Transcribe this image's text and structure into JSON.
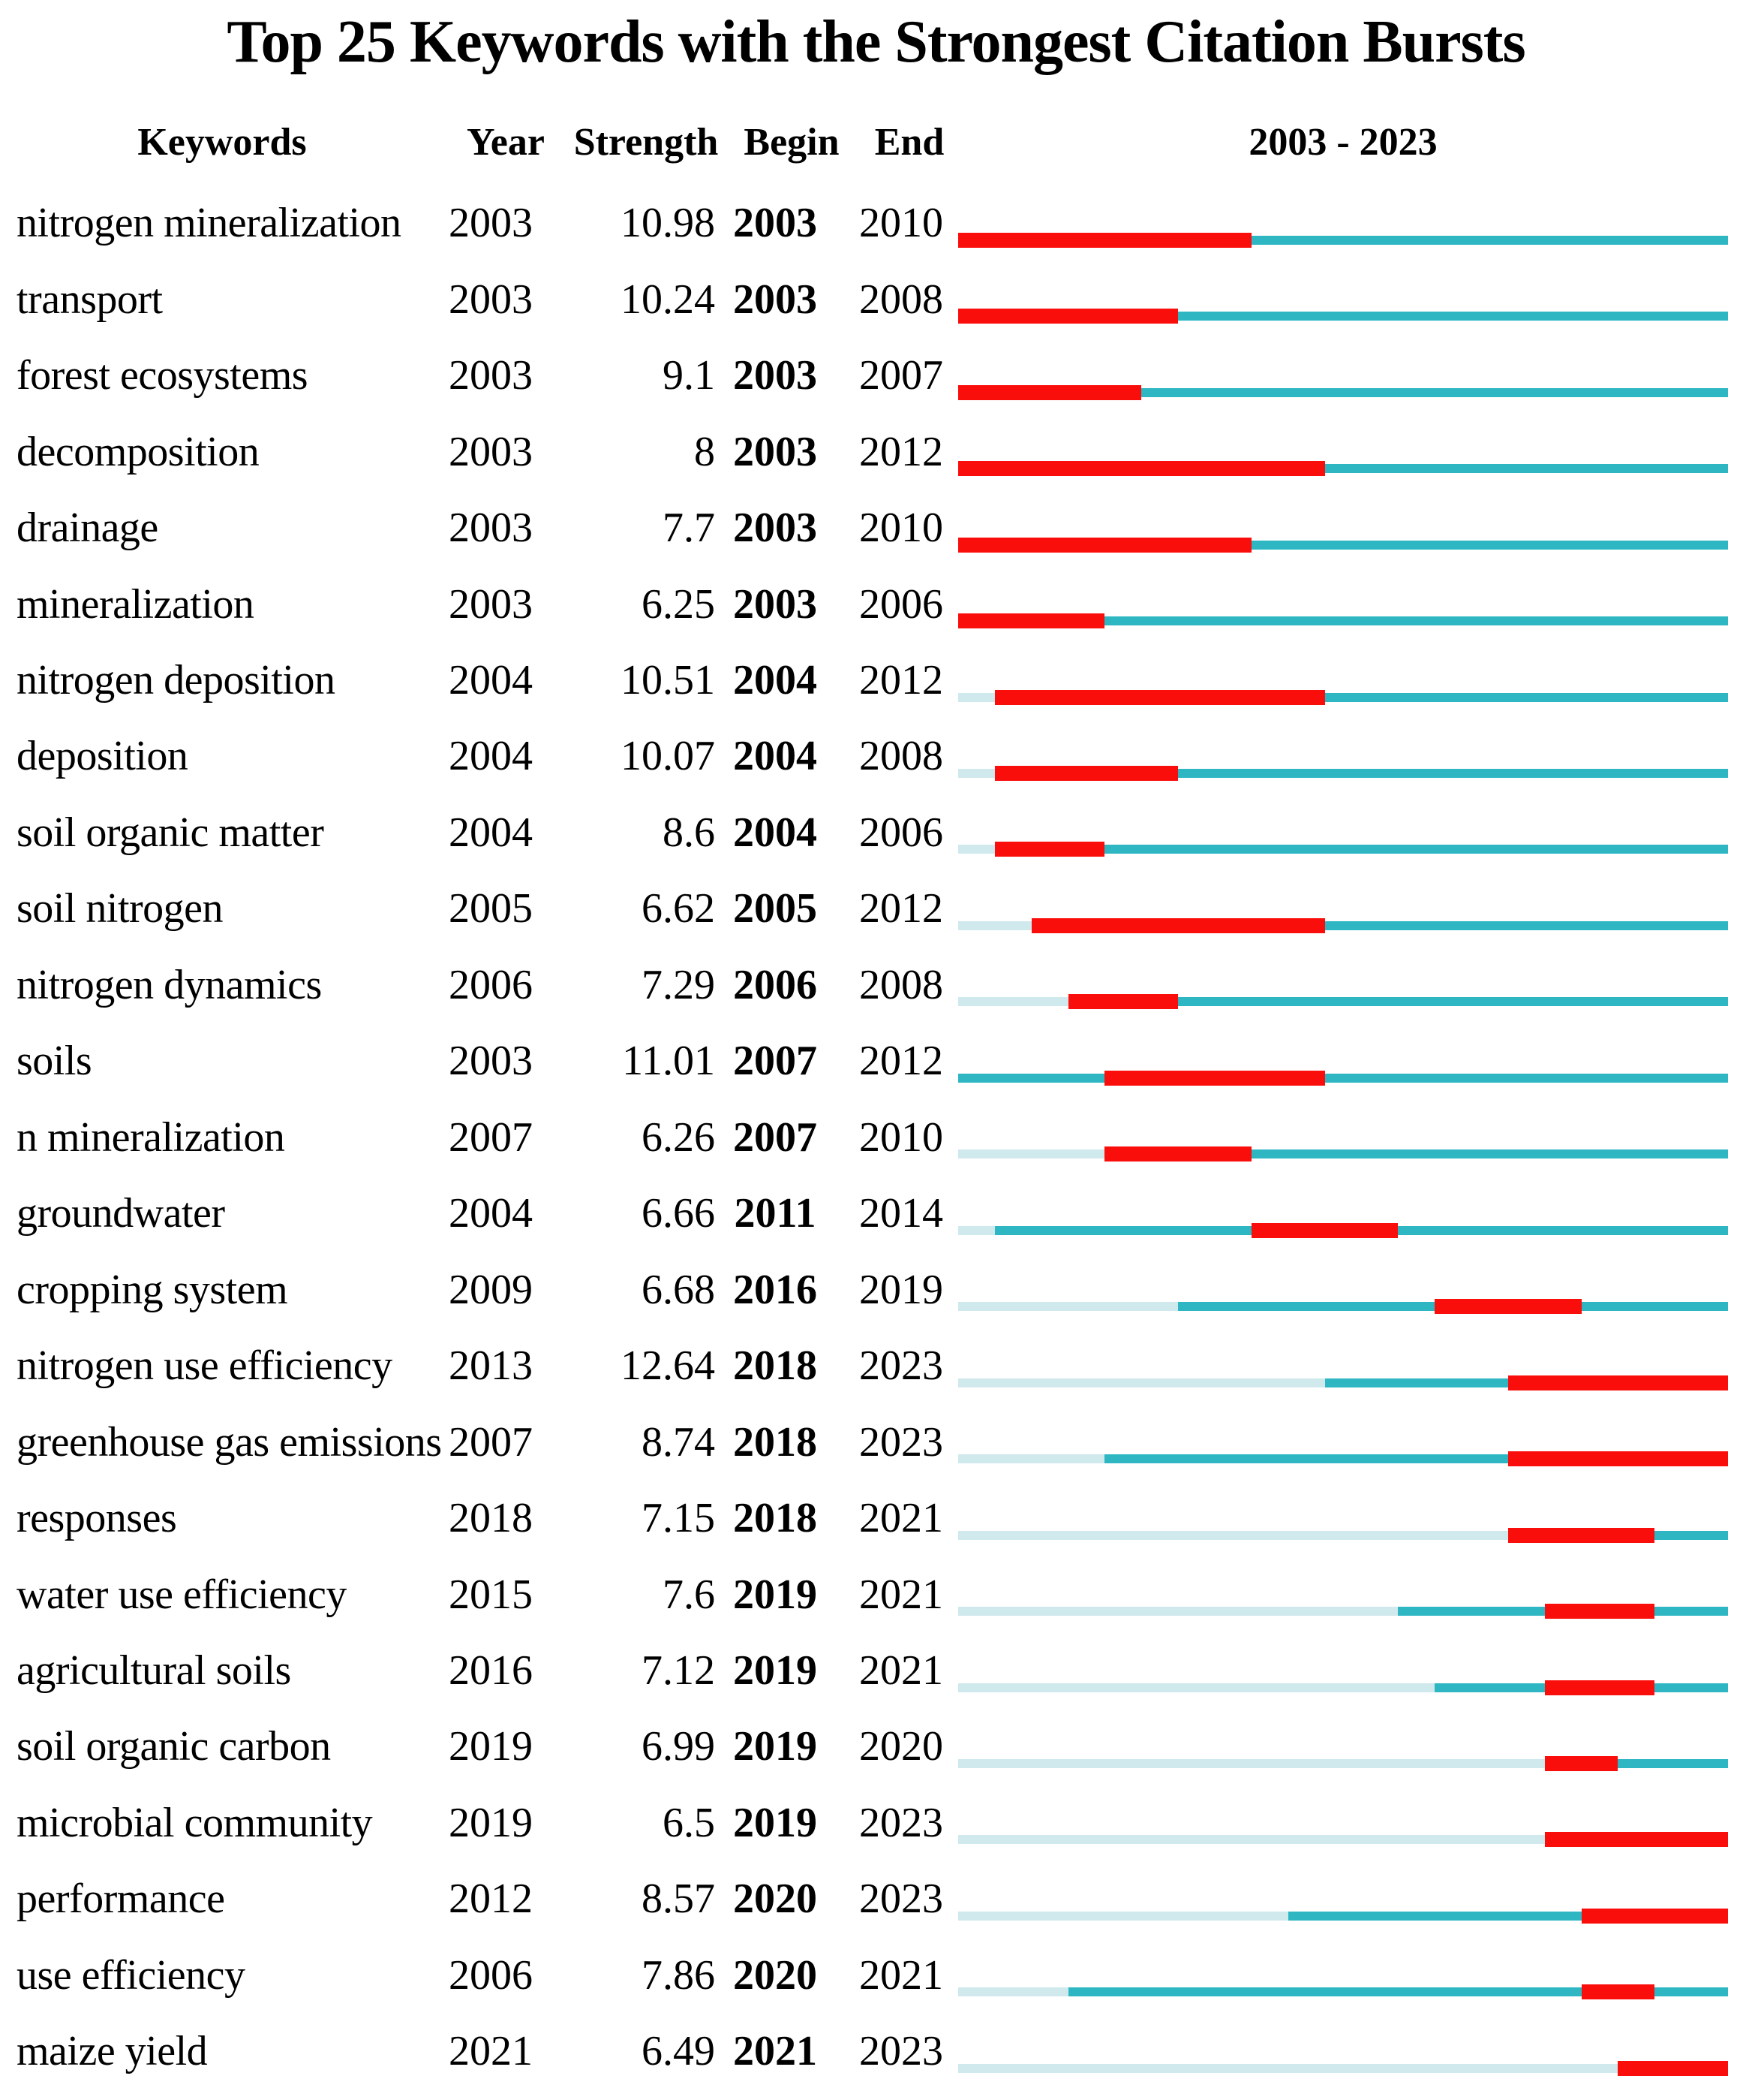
{
  "title": "Top 25 Keywords with the Strongest Citation Bursts",
  "header": {
    "keywords": "Keywords",
    "year": "Year",
    "strength": "Strength",
    "begin": "Begin",
    "end": "End",
    "period": "2003 - 2023"
  },
  "colors": {
    "burst": "#fa0e0c",
    "active": "#2eb7c3",
    "pre_appearance": "#cfe9ed",
    "text": "#000000",
    "background": "#ffffff"
  },
  "chart_data": {
    "type": "table",
    "title": "Top 25 Keywords with the Strongest Citation Bursts",
    "columns": [
      "Keywords",
      "Year",
      "Strength",
      "Begin",
      "End",
      "2003 - 2023"
    ],
    "timeline_range": [
      2003,
      2023
    ],
    "legend_note": "red segment = burst period (Begin-End), teal = keyword active, pale = before first appearance",
    "rows": [
      {
        "keyword": "nitrogen mineralization",
        "year": 2003,
        "strength": "10.98",
        "begin": 2003,
        "end": 2010
      },
      {
        "keyword": "transport",
        "year": 2003,
        "strength": "10.24",
        "begin": 2003,
        "end": 2008
      },
      {
        "keyword": "forest ecosystems",
        "year": 2003,
        "strength": "9.1",
        "begin": 2003,
        "end": 2007
      },
      {
        "keyword": "decomposition",
        "year": 2003,
        "strength": "8",
        "begin": 2003,
        "end": 2012
      },
      {
        "keyword": "drainage",
        "year": 2003,
        "strength": "7.7",
        "begin": 2003,
        "end": 2010
      },
      {
        "keyword": "mineralization",
        "year": 2003,
        "strength": "6.25",
        "begin": 2003,
        "end": 2006
      },
      {
        "keyword": "nitrogen deposition",
        "year": 2004,
        "strength": "10.51",
        "begin": 2004,
        "end": 2012
      },
      {
        "keyword": "deposition",
        "year": 2004,
        "strength": "10.07",
        "begin": 2004,
        "end": 2008
      },
      {
        "keyword": "soil organic matter",
        "year": 2004,
        "strength": "8.6",
        "begin": 2004,
        "end": 2006
      },
      {
        "keyword": "soil nitrogen",
        "year": 2005,
        "strength": "6.62",
        "begin": 2005,
        "end": 2012
      },
      {
        "keyword": "nitrogen dynamics",
        "year": 2006,
        "strength": "7.29",
        "begin": 2006,
        "end": 2008
      },
      {
        "keyword": "soils",
        "year": 2003,
        "strength": "11.01",
        "begin": 2007,
        "end": 2012
      },
      {
        "keyword": "n mineralization",
        "year": 2007,
        "strength": "6.26",
        "begin": 2007,
        "end": 2010
      },
      {
        "keyword": "groundwater",
        "year": 2004,
        "strength": "6.66",
        "begin": 2011,
        "end": 2014
      },
      {
        "keyword": "cropping system",
        "year": 2009,
        "strength": "6.68",
        "begin": 2016,
        "end": 2019
      },
      {
        "keyword": "nitrogen use efficiency",
        "year": 2013,
        "strength": "12.64",
        "begin": 2018,
        "end": 2023
      },
      {
        "keyword": "greenhouse gas emissions",
        "year": 2007,
        "strength": "8.74",
        "begin": 2018,
        "end": 2023
      },
      {
        "keyword": "responses",
        "year": 2018,
        "strength": "7.15",
        "begin": 2018,
        "end": 2021
      },
      {
        "keyword": "water use efficiency",
        "year": 2015,
        "strength": "7.6",
        "begin": 2019,
        "end": 2021
      },
      {
        "keyword": "agricultural soils",
        "year": 2016,
        "strength": "7.12",
        "begin": 2019,
        "end": 2021
      },
      {
        "keyword": "soil organic carbon",
        "year": 2019,
        "strength": "6.99",
        "begin": 2019,
        "end": 2020
      },
      {
        "keyword": "microbial community",
        "year": 2019,
        "strength": "6.5",
        "begin": 2019,
        "end": 2023
      },
      {
        "keyword": "performance",
        "year": 2012,
        "strength": "8.57",
        "begin": 2020,
        "end": 2023
      },
      {
        "keyword": "use efficiency",
        "year": 2006,
        "strength": "7.86",
        "begin": 2020,
        "end": 2021
      },
      {
        "keyword": "maize yield",
        "year": 2021,
        "strength": "6.49",
        "begin": 2021,
        "end": 2023
      }
    ]
  }
}
